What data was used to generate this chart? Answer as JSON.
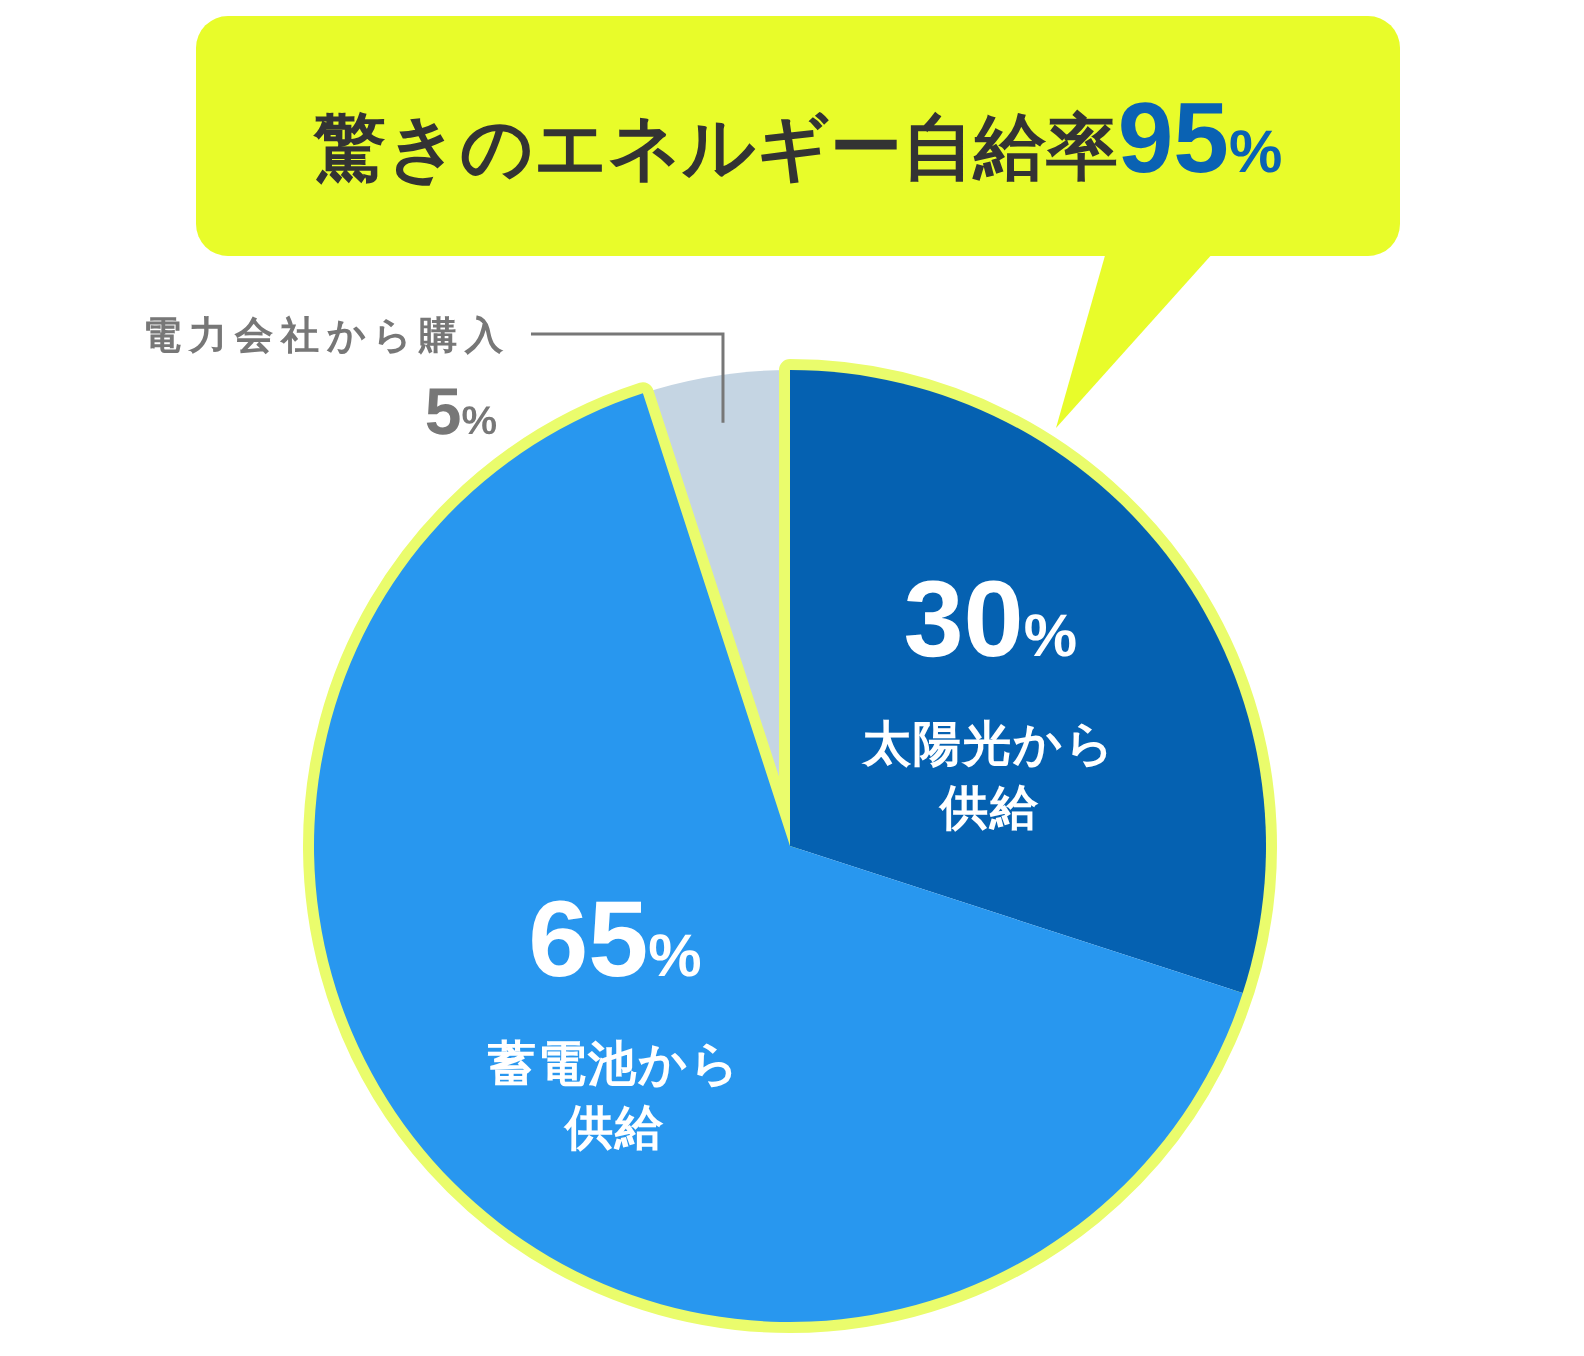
{
  "chart_data": {
    "type": "pie",
    "title": "驚きのエネルギー自給率95%",
    "categories": [
      "太陽光から供給",
      "蓄電池から供給",
      "電力会社から購入"
    ],
    "values": [
      30,
      65,
      5
    ],
    "colors": [
      "#0561b1",
      "#2897ef",
      "#c5d5e3"
    ],
    "value_labels": [
      "30%",
      "65%",
      "5%"
    ]
  }
}
